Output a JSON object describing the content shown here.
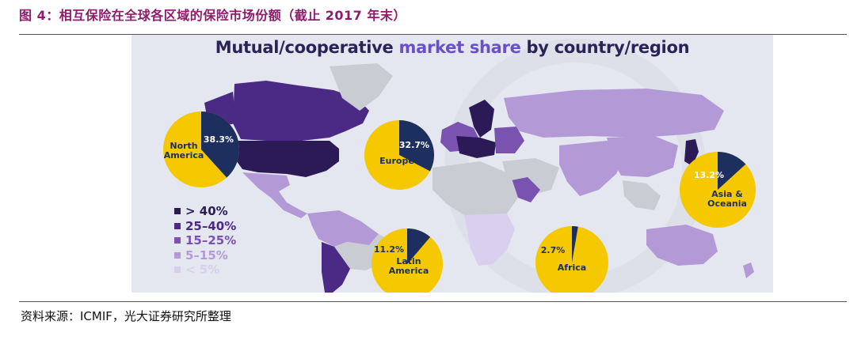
{
  "figure": {
    "header": "图 4：相互保险在全球各区域的保险市场份额（截止 2017 年末）",
    "source": "资料来源：ICMIF，光大证券研究所整理"
  },
  "chart_data": {
    "type": "pie",
    "title_parts": [
      "Mutual/cooperative ",
      "market share",
      " by country/region"
    ],
    "title": "Mutual/cooperative market share by country/region",
    "legend": [
      {
        "label": "> 40%",
        "color": "#2c1a57"
      },
      {
        "label": "25–40%",
        "color": "#4b2a86"
      },
      {
        "label": "15–25%",
        "color": "#7a52b0"
      },
      {
        "label": "5–15%",
        "color": "#b39ad6"
      },
      {
        "label": "< 5%",
        "color": "#d9cfee"
      }
    ],
    "pies": [
      {
        "region_lines": [
          "North",
          "America"
        ],
        "value": 38.3,
        "value_label": "38.3%"
      },
      {
        "region_lines": [
          "Europe"
        ],
        "value": 32.7,
        "value_label": "32.7%"
      },
      {
        "region_lines": [
          "Asia &",
          "Oceania"
        ],
        "value": 13.2,
        "value_label": "13.2%"
      },
      {
        "region_lines": [
          "Latin",
          "America"
        ],
        "value": 11.2,
        "value_label": "11.2%"
      },
      {
        "region_lines": [
          "Africa"
        ],
        "value": 2.7,
        "value_label": "2.7%"
      }
    ],
    "colors": {
      "share": "#1c2f5e",
      "remainder": "#f5c800",
      "no_data": "#c9ccd3"
    }
  }
}
